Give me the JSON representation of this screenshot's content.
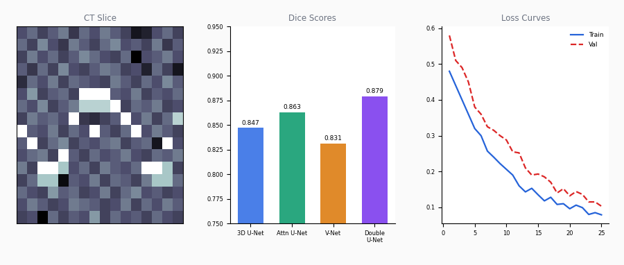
{
  "chart_data": [
    {
      "type": "heatmap",
      "title": "CT Slice",
      "tick_labels": false,
      "cells": [
        [
          0.35,
          0.45,
          0.3,
          0.4,
          0.5,
          0.25,
          0.45,
          0.35,
          0.5,
          0.4,
          0.3,
          0.1,
          0.15,
          0.35,
          0.45,
          0.3
        ],
        [
          0.45,
          0.3,
          0.55,
          0.35,
          0.25,
          0.5,
          0.4,
          0.3,
          0.45,
          0.55,
          0.35,
          0.4,
          0.3,
          0.5,
          0.25,
          0.4
        ],
        [
          0.3,
          0.5,
          0.35,
          0.45,
          0.3,
          0.4,
          0.55,
          0.45,
          0.35,
          0.3,
          0.45,
          0.0,
          0.35,
          0.4,
          0.5,
          0.35
        ],
        [
          0.4,
          0.25,
          0.45,
          0.3,
          0.55,
          0.35,
          0.3,
          0.4,
          0.5,
          0.45,
          0.3,
          0.35,
          0.15,
          0.45,
          0.3,
          0.1
        ],
        [
          0.2,
          0.45,
          0.35,
          0.5,
          0.3,
          0.45,
          0.4,
          0.35,
          0.3,
          0.5,
          0.4,
          0.3,
          0.45,
          0.35,
          0.55,
          0.4
        ],
        [
          0.35,
          0.6,
          0.3,
          0.4,
          0.45,
          0.3,
          1.0,
          1.0,
          1.0,
          0.4,
          0.35,
          0.5,
          0.3,
          0.4,
          0.35,
          0.45
        ],
        [
          0.45,
          0.35,
          0.55,
          0.3,
          0.4,
          0.5,
          0.8,
          0.8,
          0.8,
          1.0,
          0.3,
          0.45,
          0.4,
          0.5,
          0.3,
          0.35
        ],
        [
          0.3,
          0.5,
          0.4,
          0.45,
          0.35,
          1.0,
          0.25,
          0.2,
          0.3,
          0.4,
          1.0,
          0.35,
          0.5,
          0.3,
          0.45,
          0.8
        ],
        [
          1.0,
          0.4,
          0.35,
          0.5,
          0.3,
          0.45,
          0.35,
          1.0,
          0.4,
          0.3,
          0.45,
          1.0,
          0.35,
          0.5,
          0.4,
          0.3
        ],
        [
          0.4,
          1.0,
          0.3,
          0.45,
          0.55,
          0.3,
          0.4,
          0.35,
          0.45,
          0.5,
          0.3,
          0.4,
          0.45,
          0.1,
          1.0,
          0.35
        ],
        [
          0.35,
          0.45,
          0.5,
          0.3,
          1.0,
          0.4,
          0.3,
          0.45,
          0.35,
          0.4,
          0.5,
          0.35,
          0.3,
          0.45,
          0.4,
          0.5
        ],
        [
          0.5,
          0.3,
          1.0,
          1.0,
          0.75,
          0.35,
          0.45,
          0.3,
          0.5,
          0.4,
          0.35,
          0.45,
          1.0,
          1.0,
          0.75,
          0.3
        ],
        [
          0.3,
          0.45,
          0.75,
          0.75,
          0.05,
          0.4,
          0.35,
          0.5,
          0.3,
          0.45,
          0.4,
          0.3,
          0.5,
          0.75,
          0.75,
          0.45
        ],
        [
          0.45,
          0.35,
          0.3,
          0.6,
          0.4,
          0.45,
          0.3,
          0.35,
          0.5,
          0.3,
          0.45,
          0.55,
          0.35,
          0.4,
          0.3,
          0.35
        ],
        [
          0.35,
          0.5,
          0.4,
          0.3,
          0.35,
          0.5,
          0.45,
          0.4,
          0.3,
          0.35,
          0.5,
          0.3,
          0.45,
          0.35,
          0.5,
          0.4
        ],
        [
          0.3,
          0.35,
          0.0,
          0.45,
          0.3,
          0.4,
          0.35,
          0.6,
          0.3,
          0.45,
          0.35,
          0.4,
          0.3,
          0.45,
          0.35,
          0.3
        ]
      ]
    },
    {
      "type": "bar",
      "title": "Dice Scores",
      "categories": [
        "3D U-Net",
        "Attn U-Net",
        "V-Net",
        "Double\nU-Net"
      ],
      "values": [
        0.847,
        0.863,
        0.831,
        0.879
      ],
      "colors": [
        "#4a7fe8",
        "#2aa77f",
        "#e08a2a",
        "#8a50ef"
      ],
      "data_labels": true,
      "ylim": [
        0.75,
        0.95
      ],
      "yticks": [
        {
          "value": 0.75,
          "label": "0.750"
        },
        {
          "value": 0.775,
          "label": "0.775"
        },
        {
          "value": 0.8,
          "label": "0.800"
        },
        {
          "value": 0.825,
          "label": "0.825"
        },
        {
          "value": 0.85,
          "label": "0.850"
        },
        {
          "value": 0.875,
          "label": "0.875"
        },
        {
          "value": 0.9,
          "label": "0.900"
        },
        {
          "value": 0.925,
          "label": "0.925"
        },
        {
          "value": 0.95,
          "label": "0.950"
        }
      ]
    },
    {
      "type": "line",
      "title": "Loss Curves",
      "legend": "upper right",
      "x": [
        1,
        2,
        3,
        4,
        5,
        6,
        7,
        8,
        9,
        10,
        11,
        12,
        13,
        14,
        15,
        16,
        17,
        18,
        19,
        20,
        21,
        22,
        23,
        24,
        25
      ],
      "series": [
        {
          "name": "Train",
          "color": "#2563d9",
          "line_style": "solid",
          "values": [
            0.48,
            0.44,
            0.4,
            0.36,
            0.32,
            0.3,
            0.257,
            0.24,
            0.222,
            0.206,
            0.19,
            0.16,
            0.143,
            0.153,
            0.135,
            0.118,
            0.128,
            0.108,
            0.11,
            0.096,
            0.106,
            0.099,
            0.08,
            0.085,
            0.079
          ]
        },
        {
          "name": "Val",
          "color": "#dc2626",
          "line_style": "dashed",
          "values": [
            0.58,
            0.51,
            0.49,
            0.45,
            0.38,
            0.36,
            0.325,
            0.315,
            0.3,
            0.288,
            0.255,
            0.252,
            0.21,
            0.19,
            0.193,
            0.185,
            0.17,
            0.14,
            0.152,
            0.132,
            0.144,
            0.136,
            0.115,
            0.115,
            0.103
          ]
        }
      ],
      "xlim": [
        -0.2,
        26.2
      ],
      "xticks": [
        0,
        5,
        10,
        15,
        20,
        25
      ],
      "ylim": [
        0.055,
        0.605
      ],
      "yticks": [
        0.1,
        0.2,
        0.3,
        0.4,
        0.5,
        0.6
      ]
    }
  ]
}
